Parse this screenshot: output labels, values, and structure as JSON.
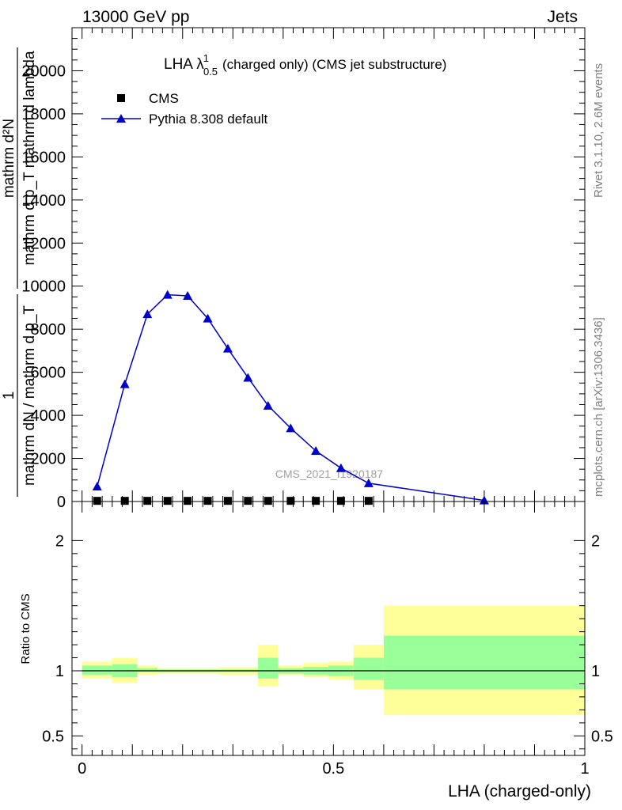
{
  "header": {
    "left_label": "13000 GeV pp",
    "right_label": "Jets"
  },
  "side_labels": {
    "rivet": "Rivet 3.1.10,  2.6M events",
    "mcplots": "mcplots.cern.ch [arXiv:1306.3436]"
  },
  "watermark": "CMS_2021_I1920187",
  "colors": {
    "mc_line": "#0000cc",
    "band_inner": "#99ff99",
    "band_outer": "#ffff99",
    "data_marker": "#000000",
    "side_text": "#808080"
  },
  "chart_data": [
    {
      "type": "line",
      "panel": "main",
      "title_main": "LHA λ",
      "title_sup": "1",
      "title_sub": "0.5",
      "title_rest": "(charged only) (CMS jet substructure)",
      "ylabel_num": "mathrm d²N",
      "ylabel_den": "mathrm d p_T mathrm d lambda",
      "ylabel_prefix_num": "1",
      "ylabel_prefix_den": "mathrm dN / mathrm d p_T",
      "ylim": [
        0,
        22000
      ],
      "yticks": [
        0,
        2000,
        4000,
        6000,
        8000,
        10000,
        12000,
        14000,
        16000,
        18000,
        20000
      ],
      "ytick_labels": [
        "0",
        "2000",
        "4000",
        "6000",
        "8000",
        "10000",
        "12000",
        "14000",
        "16000",
        "18000",
        "20000"
      ],
      "xlim": [
        -0.02,
        1.0
      ],
      "grid": false,
      "legend_position": "top-left",
      "series": [
        {
          "name": "CMS",
          "marker": "square",
          "x": [
            0.03,
            0.085,
            0.13,
            0.17,
            0.21,
            0.25,
            0.29,
            0.33,
            0.37,
            0.415,
            0.465,
            0.515,
            0.57
          ],
          "y": [
            30,
            30,
            30,
            30,
            30,
            30,
            30,
            30,
            30,
            30,
            30,
            30,
            30
          ]
        },
        {
          "name": "Pythia 8.308 default",
          "marker": "triangle",
          "x": [
            0.03,
            0.085,
            0.13,
            0.17,
            0.21,
            0.25,
            0.29,
            0.33,
            0.37,
            0.415,
            0.465,
            0.515,
            0.57,
            0.8
          ],
          "y": [
            700,
            5450,
            8700,
            9600,
            9550,
            8500,
            7100,
            5750,
            4450,
            3400,
            2350,
            1550,
            850,
            50
          ]
        }
      ]
    },
    {
      "type": "area",
      "panel": "ratio",
      "ylabel": "Ratio to CMS",
      "ylim": [
        0.35,
        2.3
      ],
      "yticks": [
        0.5,
        1,
        2
      ],
      "ytick_labels": [
        "0.5",
        "1",
        "2"
      ],
      "xlabel": "LHA (charged-only)",
      "xlim": [
        -0.02,
        1.0
      ],
      "xticks": [
        0,
        0.5,
        1
      ],
      "xtick_labels": [
        "0",
        "0.5",
        "1"
      ],
      "reference_line": 1,
      "bins": [
        {
          "x0": 0.0,
          "x1": 0.06,
          "inner": [
            0.97,
            1.04
          ],
          "outer": [
            0.94,
            1.07
          ]
        },
        {
          "x0": 0.06,
          "x1": 0.11,
          "inner": [
            0.95,
            1.05
          ],
          "outer": [
            0.91,
            1.1
          ]
        },
        {
          "x0": 0.11,
          "x1": 0.15,
          "inner": [
            0.99,
            1.02
          ],
          "outer": [
            0.97,
            1.04
          ]
        },
        {
          "x0": 0.15,
          "x1": 0.19,
          "inner": [
            0.99,
            1.01
          ],
          "outer": [
            0.98,
            1.02
          ]
        },
        {
          "x0": 0.19,
          "x1": 0.23,
          "inner": [
            0.99,
            1.01
          ],
          "outer": [
            0.98,
            1.02
          ]
        },
        {
          "x0": 0.23,
          "x1": 0.27,
          "inner": [
            0.99,
            1.01
          ],
          "outer": [
            0.98,
            1.02
          ]
        },
        {
          "x0": 0.27,
          "x1": 0.31,
          "inner": [
            0.99,
            1.01
          ],
          "outer": [
            0.97,
            1.03
          ]
        },
        {
          "x0": 0.31,
          "x1": 0.35,
          "inner": [
            0.99,
            1.01
          ],
          "outer": [
            0.97,
            1.03
          ]
        },
        {
          "x0": 0.35,
          "x1": 0.39,
          "inner": [
            0.94,
            1.1
          ],
          "outer": [
            0.88,
            1.2
          ]
        },
        {
          "x0": 0.39,
          "x1": 0.44,
          "inner": [
            0.98,
            1.02
          ],
          "outer": [
            0.97,
            1.04
          ]
        },
        {
          "x0": 0.44,
          "x1": 0.49,
          "inner": [
            0.97,
            1.03
          ],
          "outer": [
            0.95,
            1.06
          ]
        },
        {
          "x0": 0.49,
          "x1": 0.54,
          "inner": [
            0.96,
            1.04
          ],
          "outer": [
            0.93,
            1.07
          ]
        },
        {
          "x0": 0.54,
          "x1": 0.6,
          "inner": [
            0.93,
            1.1
          ],
          "outer": [
            0.86,
            1.2
          ]
        },
        {
          "x0": 0.6,
          "x1": 1.0,
          "inner": [
            0.86,
            1.27
          ],
          "outer": [
            0.66,
            1.5
          ]
        }
      ]
    }
  ]
}
